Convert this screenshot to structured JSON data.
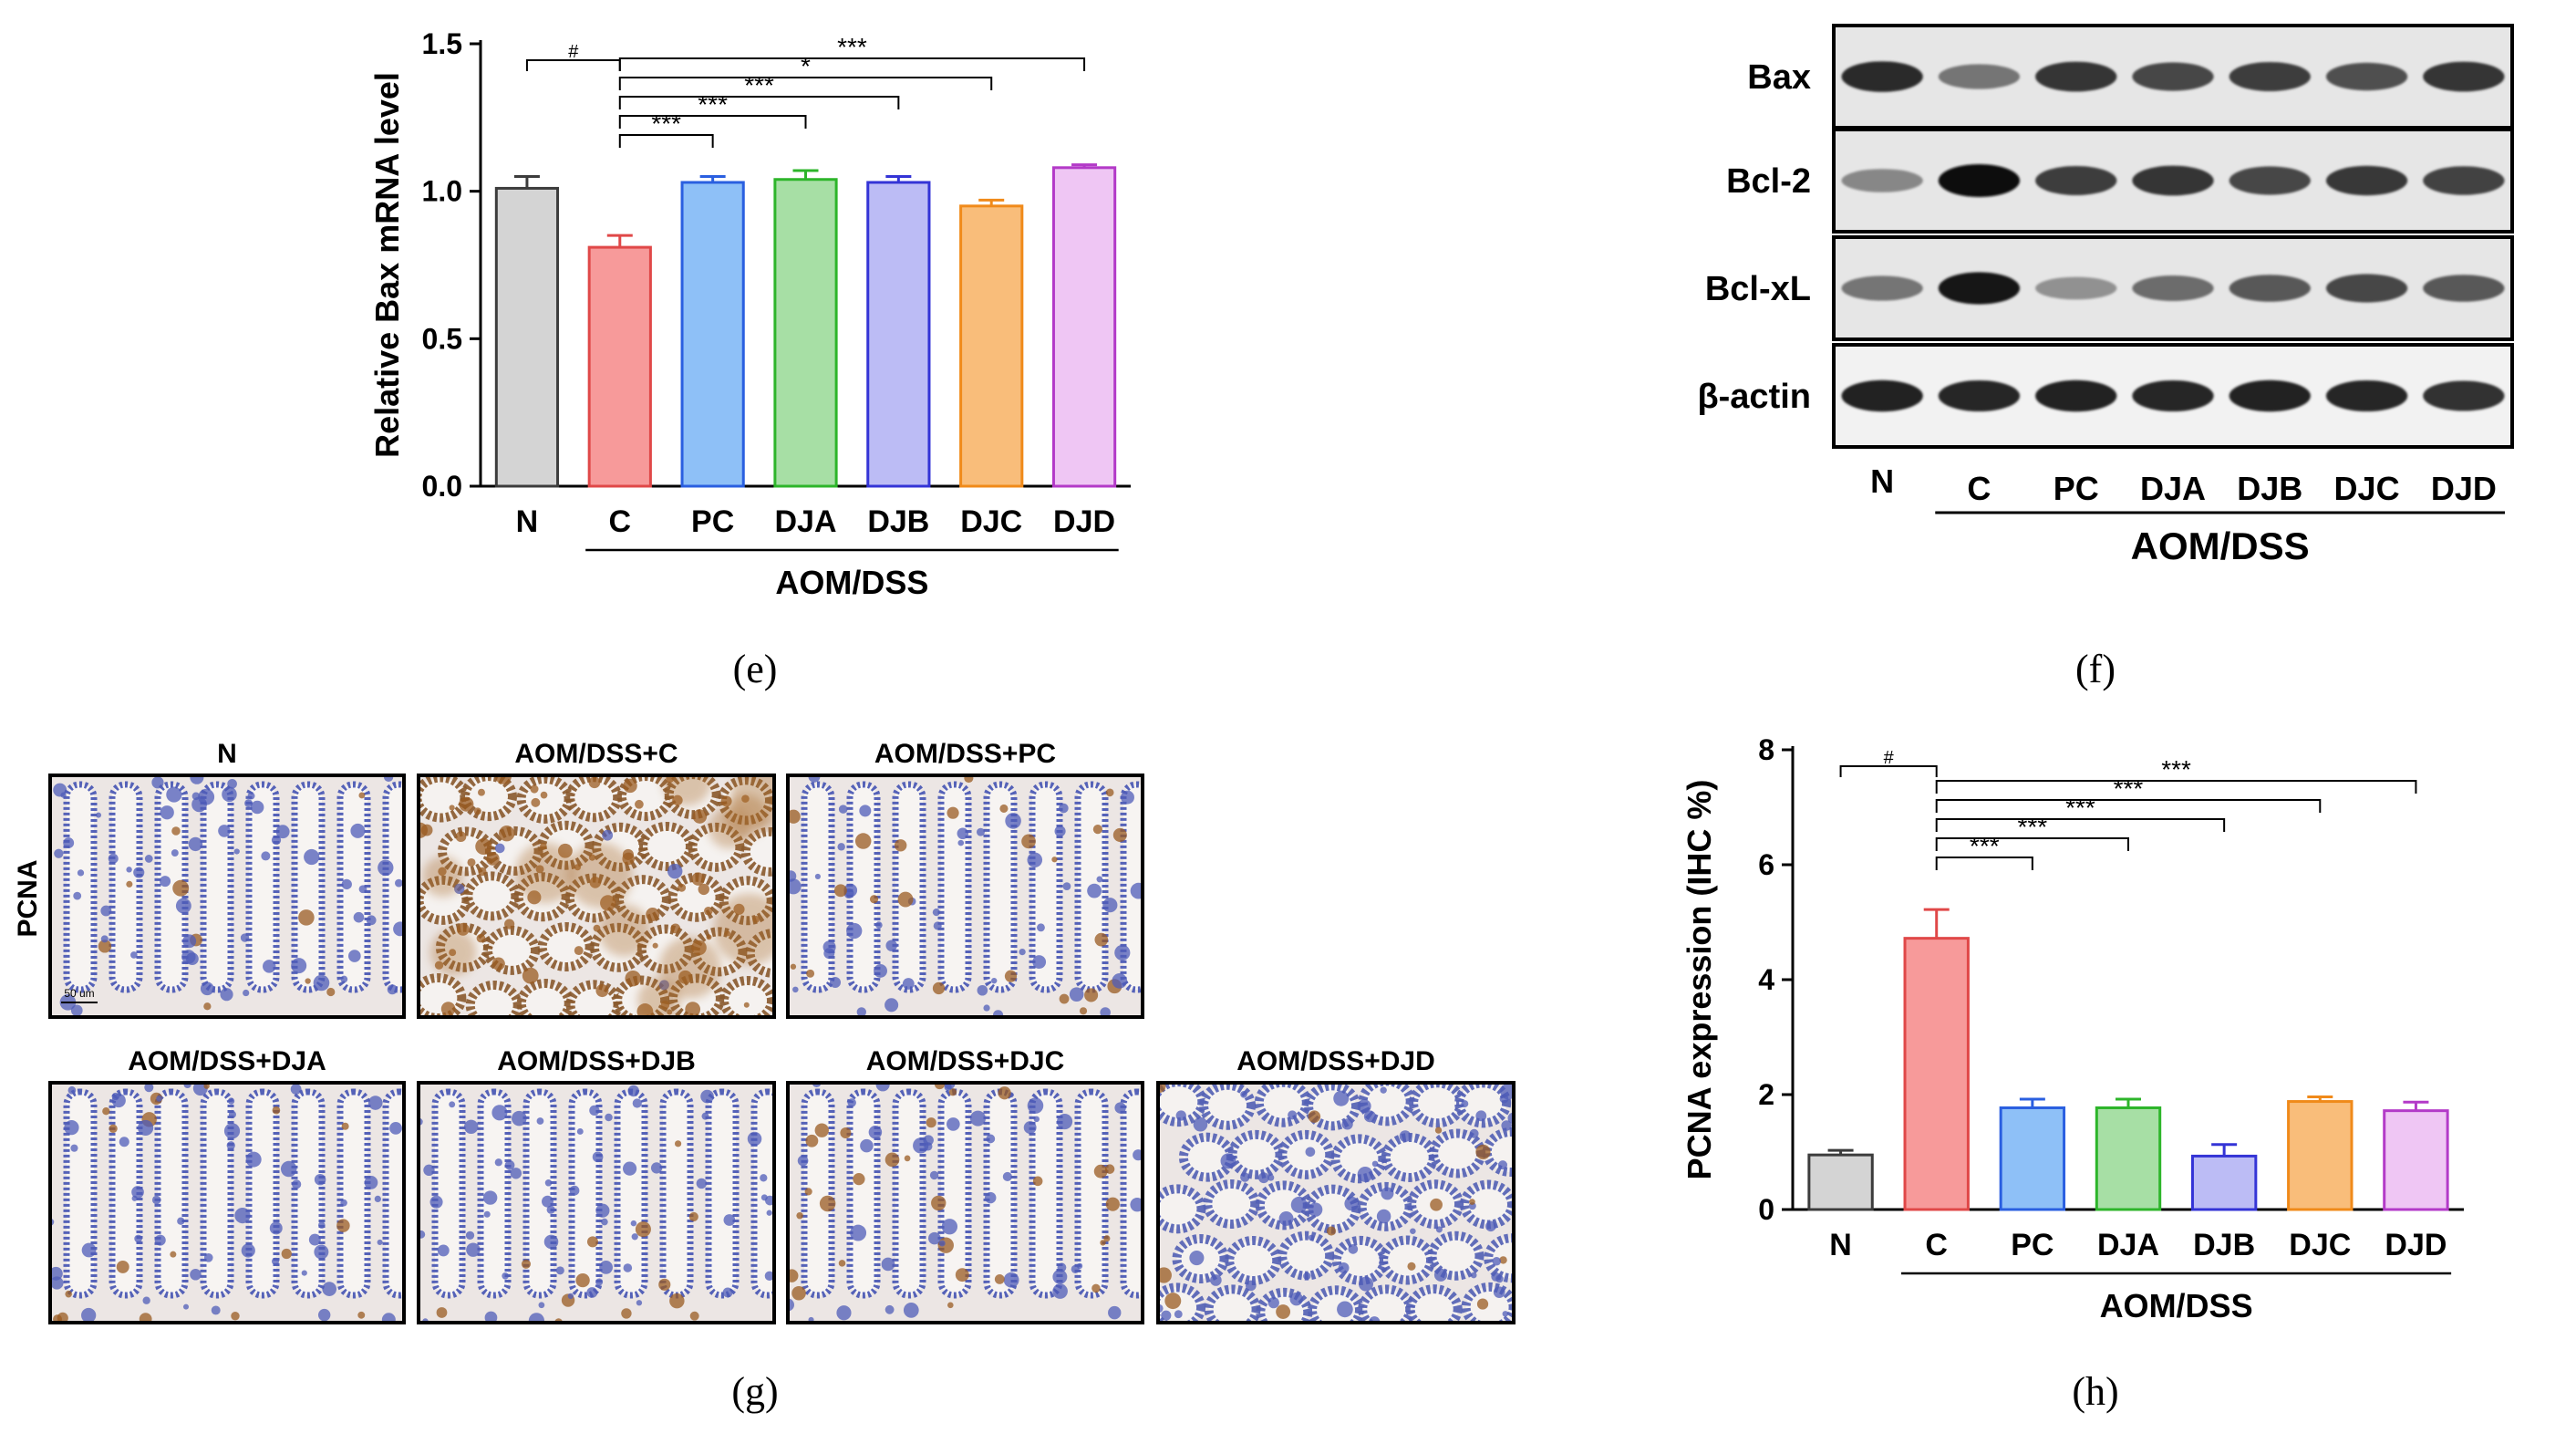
{
  "panel_labels": {
    "e": "(e)",
    "f": "(f)",
    "g": "(g)",
    "h": "(h)"
  },
  "colors": {
    "N": "#d4d4d4",
    "C": "#f79a9a",
    "PC": "#8ec0f7",
    "DJA": "#a7dfa5",
    "DJB": "#bcbcf5",
    "DJC": "#f9bd7a",
    "DJD": "#efc6f4",
    "N_edge": "#3c3c3c",
    "C_edge": "#e04848",
    "PC_edge": "#2a5fe0",
    "DJA_edge": "#2db52a",
    "DJB_edge": "#3434d6",
    "DJC_edge": "#f08a1a",
    "DJD_edge": "#b33ac8"
  },
  "chart_data": [
    {
      "id": "e",
      "type": "bar",
      "ylabel": "Relative Bax mRNA level",
      "group_label": "AOM/DSS",
      "ylim": [
        0,
        1.5
      ],
      "yticks": [
        0.0,
        0.5,
        1.0,
        1.5
      ],
      "ytick_labels": [
        "0.0",
        "0.5",
        "1.0",
        "1.5"
      ],
      "categories": [
        "N",
        "C",
        "PC",
        "DJA",
        "DJB",
        "DJC",
        "DJD"
      ],
      "values": [
        1.01,
        0.81,
        1.03,
        1.04,
        1.03,
        0.95,
        1.08
      ],
      "errors": [
        0.04,
        0.04,
        0.02,
        0.03,
        0.02,
        0.02,
        0.01
      ],
      "significance": [
        {
          "from": "N",
          "to": "C",
          "label": "#"
        },
        {
          "from": "C",
          "to": "PC",
          "label": "***"
        },
        {
          "from": "C",
          "to": "DJA",
          "label": "***"
        },
        {
          "from": "C",
          "to": "DJB",
          "label": "***"
        },
        {
          "from": "C",
          "to": "DJC",
          "label": "*"
        },
        {
          "from": "C",
          "to": "DJD",
          "label": "***"
        }
      ]
    },
    {
      "id": "h",
      "type": "bar",
      "ylabel": "PCNA expression  (IHC %)",
      "group_label": "AOM/DSS",
      "ylim": [
        0,
        8
      ],
      "yticks": [
        0,
        2,
        4,
        6,
        8
      ],
      "ytick_labels": [
        "0",
        "2",
        "4",
        "6",
        "8"
      ],
      "categories": [
        "N",
        "C",
        "PC",
        "DJA",
        "DJB",
        "DJC",
        "DJD"
      ],
      "values": [
        0.95,
        4.72,
        1.77,
        1.77,
        0.93,
        1.88,
        1.72
      ],
      "errors": [
        0.08,
        0.5,
        0.15,
        0.15,
        0.2,
        0.08,
        0.15
      ],
      "significance": [
        {
          "from": "N",
          "to": "C",
          "label": "#"
        },
        {
          "from": "C",
          "to": "PC",
          "label": "***"
        },
        {
          "from": "C",
          "to": "DJA",
          "label": "***"
        },
        {
          "from": "C",
          "to": "DJB",
          "label": "***"
        },
        {
          "from": "C",
          "to": "DJC",
          "label": "***"
        },
        {
          "from": "C",
          "to": "DJD",
          "label": "***"
        }
      ]
    }
  ],
  "western_blot": {
    "rows": [
      "Bax",
      "Bcl-2",
      "Bcl-xL",
      "β-actin"
    ],
    "lanes": [
      "N",
      "C",
      "PC",
      "DJA",
      "DJB",
      "DJC",
      "DJD"
    ],
    "group_label": "AOM/DSS",
    "band_intensity": [
      [
        0.85,
        0.45,
        0.8,
        0.7,
        0.75,
        0.65,
        0.8
      ],
      [
        0.35,
        1.0,
        0.75,
        0.8,
        0.7,
        0.78,
        0.72
      ],
      [
        0.45,
        0.95,
        0.3,
        0.5,
        0.6,
        0.7,
        0.6
      ],
      [
        0.9,
        0.88,
        0.9,
        0.88,
        0.9,
        0.88,
        0.82
      ]
    ]
  },
  "histology": {
    "row_label": "PCNA",
    "scale_bar": "50 um",
    "panels": [
      "N",
      "AOM/DSS+C",
      "AOM/DSS+PC",
      "AOM/DSS+DJA",
      "AOM/DSS+DJB",
      "AOM/DSS+DJC",
      "AOM/DSS+DJD"
    ],
    "stain_level": [
      0.15,
      0.9,
      0.25,
      0.2,
      0.15,
      0.3,
      0.2
    ]
  }
}
